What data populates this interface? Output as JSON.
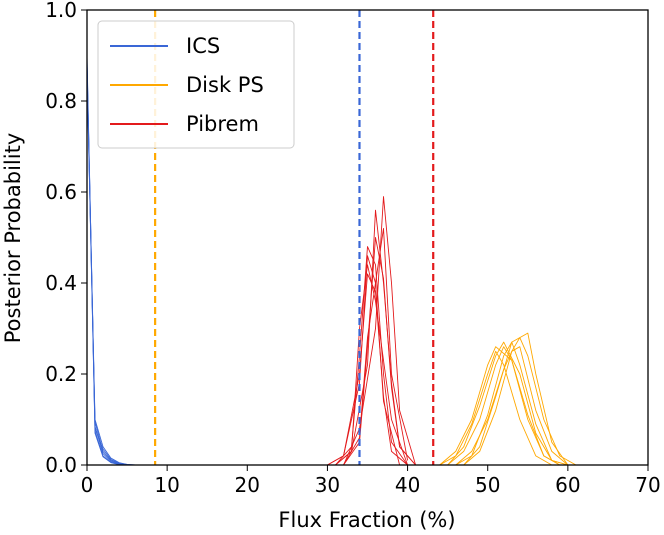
{
  "chart_data": {
    "type": "line",
    "xlabel": "Flux Fraction (%)",
    "ylabel": "Posterior Probability",
    "xlim": [
      0,
      70
    ],
    "ylim": [
      0,
      1.0
    ],
    "xticks": [
      "0",
      "10",
      "20",
      "30",
      "40",
      "50",
      "60",
      "70"
    ],
    "yticks": [
      "0.0",
      "0.2",
      "0.4",
      "0.6",
      "0.8",
      "1.0"
    ],
    "grid": false,
    "legend_position": "top-left",
    "legend": [
      {
        "name": "ICS",
        "color": "#3a67d6"
      },
      {
        "name": "Disk PS",
        "color": "#ffa800"
      },
      {
        "name": "Pibrem",
        "color": "#e31a1c"
      }
    ],
    "vertical_lines": [
      {
        "series": "Disk PS",
        "x": 8.5,
        "color": "#ffa800",
        "style": "dashed"
      },
      {
        "series": "ICS",
        "x": 34.0,
        "color": "#3a67d6",
        "style": "dashed"
      },
      {
        "series": "Pibrem",
        "x": 43.2,
        "color": "#e31a1c",
        "style": "dashed"
      }
    ],
    "series": [
      {
        "name": "ICS",
        "color": "#3a67d6",
        "curves": [
          {
            "x": [
              0,
              1,
              2,
              3,
              4,
              5,
              6
            ],
            "y": [
              0.88,
              0.1,
              0.04,
              0.015,
              0.005,
              0.001,
              0.0
            ]
          },
          {
            "x": [
              0,
              1,
              2,
              3,
              4,
              5,
              6
            ],
            "y": [
              0.9,
              0.08,
              0.035,
              0.012,
              0.004,
              0.001,
              0.0
            ]
          },
          {
            "x": [
              0,
              1,
              2,
              3,
              4,
              5,
              6
            ],
            "y": [
              0.86,
              0.095,
              0.03,
              0.01,
              0.003,
              0.0,
              0.0
            ]
          },
          {
            "x": [
              0,
              1,
              2,
              3,
              4,
              5,
              6
            ],
            "y": [
              0.89,
              0.085,
              0.025,
              0.008,
              0.002,
              0.0,
              0.0
            ]
          },
          {
            "x": [
              0,
              1,
              2,
              3,
              4,
              5,
              6
            ],
            "y": [
              0.87,
              0.075,
              0.02,
              0.006,
              0.002,
              0.0,
              0.0
            ]
          },
          {
            "x": [
              0,
              1,
              2,
              3,
              4,
              5,
              6
            ],
            "y": [
              0.88,
              0.07,
              0.018,
              0.005,
              0.001,
              0.0,
              0.0
            ]
          }
        ]
      },
      {
        "name": "Disk PS",
        "color": "#ffa800",
        "curves": [
          {
            "x": [
              44,
              46,
              48,
              50,
              51,
              52,
              54,
              56,
              58
            ],
            "y": [
              0.0,
              0.02,
              0.09,
              0.2,
              0.25,
              0.22,
              0.1,
              0.02,
              0.0
            ]
          },
          {
            "x": [
              45,
              47,
              49,
              51,
              52,
              53,
              55,
              57,
              59
            ],
            "y": [
              0.0,
              0.03,
              0.1,
              0.22,
              0.26,
              0.23,
              0.11,
              0.02,
              0.0
            ]
          },
          {
            "x": [
              46,
              48,
              50,
              52,
              53,
              54,
              56,
              58,
              60
            ],
            "y": [
              0.0,
              0.02,
              0.11,
              0.24,
              0.27,
              0.22,
              0.09,
              0.01,
              0.0
            ]
          },
          {
            "x": [
              47,
              49,
              51,
              53,
              54,
              55,
              57,
              59,
              61
            ],
            "y": [
              0.0,
              0.03,
              0.12,
              0.25,
              0.28,
              0.24,
              0.1,
              0.02,
              0.0
            ]
          },
          {
            "x": [
              45,
              47,
              49,
              51,
              52,
              54,
              56,
              58,
              60
            ],
            "y": [
              0.0,
              0.04,
              0.13,
              0.24,
              0.27,
              0.2,
              0.07,
              0.01,
              0.0
            ]
          },
          {
            "x": [
              46,
              48,
              50,
              52,
              53,
              54,
              56,
              58,
              60
            ],
            "y": [
              0.0,
              0.03,
              0.1,
              0.21,
              0.25,
              0.26,
              0.12,
              0.03,
              0.0
            ]
          },
          {
            "x": [
              44,
              46,
              48,
              50,
              51,
              53,
              55,
              57,
              59
            ],
            "y": [
              0.0,
              0.03,
              0.1,
              0.22,
              0.26,
              0.23,
              0.1,
              0.02,
              0.0
            ]
          },
          {
            "x": [
              47,
              49,
              51,
              53,
              55,
              56,
              58,
              60
            ],
            "y": [
              0.0,
              0.04,
              0.15,
              0.27,
              0.29,
              0.2,
              0.05,
              0.0
            ]
          }
        ]
      },
      {
        "name": "Pibrem",
        "color": "#e31a1c",
        "curves": [
          {
            "x": [
              30,
              32,
              34,
              35,
              36,
              37,
              38,
              40
            ],
            "y": [
              0.0,
              0.02,
              0.2,
              0.42,
              0.38,
              0.15,
              0.03,
              0.0
            ]
          },
          {
            "x": [
              31,
              33,
              34,
              35,
              36,
              37,
              38,
              40
            ],
            "y": [
              0.0,
              0.04,
              0.24,
              0.48,
              0.44,
              0.2,
              0.05,
              0.0
            ]
          },
          {
            "x": [
              31,
              33,
              35,
              36,
              37,
              38,
              39,
              41
            ],
            "y": [
              0.0,
              0.03,
              0.22,
              0.56,
              0.4,
              0.18,
              0.04,
              0.0
            ]
          },
          {
            "x": [
              32,
              34,
              35,
              36,
              37,
              38,
              39,
              41
            ],
            "y": [
              0.0,
              0.05,
              0.26,
              0.5,
              0.41,
              0.17,
              0.04,
              0.0
            ]
          },
          {
            "x": [
              32,
              34,
              36,
              37,
              38,
              39,
              41
            ],
            "y": [
              0.0,
              0.08,
              0.3,
              0.59,
              0.4,
              0.12,
              0.0
            ]
          },
          {
            "x": [
              31,
              33,
              34,
              35,
              36,
              38,
              40
            ],
            "y": [
              0.0,
              0.03,
              0.3,
              0.44,
              0.36,
              0.1,
              0.0
            ]
          },
          {
            "x": [
              30,
              32,
              34,
              35,
              36,
              37,
              39
            ],
            "y": [
              0.0,
              0.02,
              0.18,
              0.46,
              0.4,
              0.14,
              0.0
            ]
          },
          {
            "x": [
              32,
              34,
              35,
              36,
              37,
              38,
              40
            ],
            "y": [
              0.0,
              0.06,
              0.28,
              0.4,
              0.52,
              0.2,
              0.01
            ]
          }
        ]
      }
    ]
  }
}
